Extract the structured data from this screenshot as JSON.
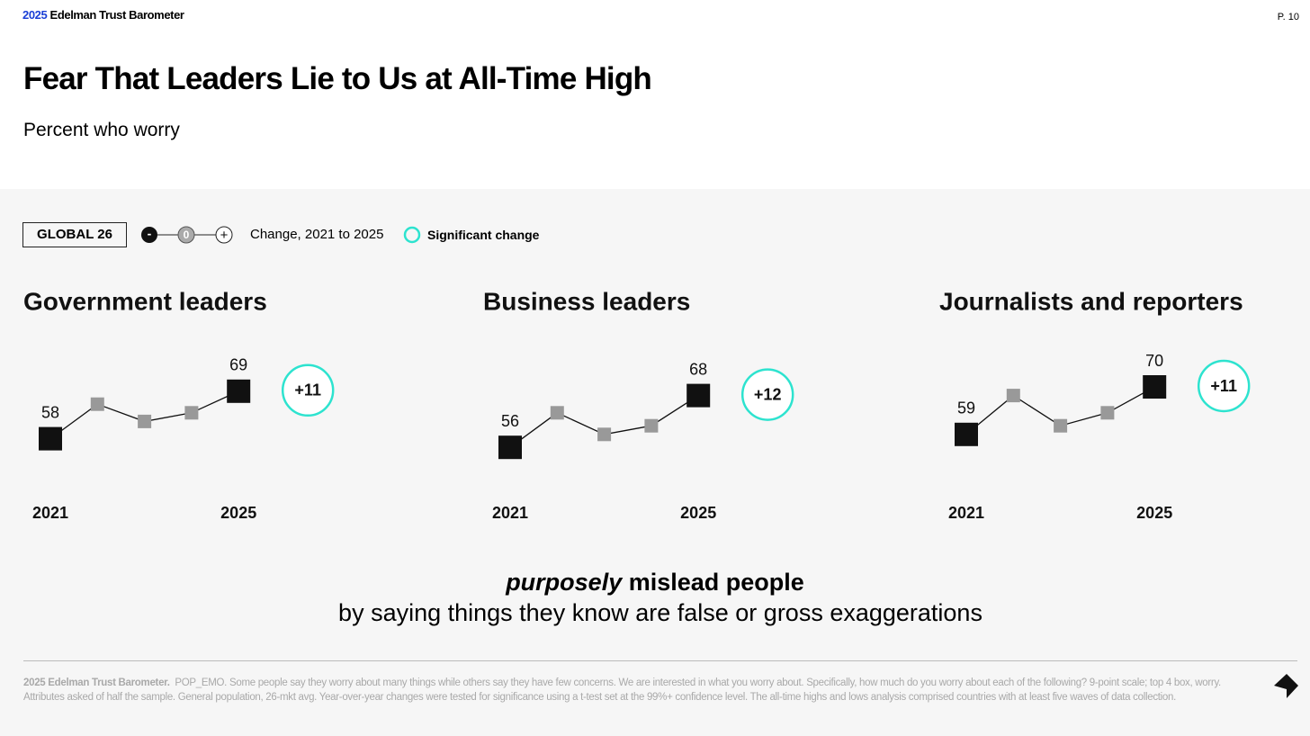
{
  "header": {
    "brand_year": "2025",
    "brand_name": "Edelman Trust Barometer",
    "page": "P. 10"
  },
  "title": "Fear That Leaders Lie to Us at All-Time High",
  "subtitle": "Percent who worry",
  "legend": {
    "market": "GLOBAL 26",
    "minus": "-",
    "zero": "0",
    "plus": "+",
    "change": "Change, 2021 to 2025",
    "significant": "Significant change"
  },
  "chart_data": [
    {
      "type": "line",
      "title": "Government leaders",
      "categories": [
        "2021",
        null,
        null,
        null,
        "2025"
      ],
      "values": [
        58,
        66,
        62,
        64,
        69
      ],
      "change": 11,
      "change_label": "+11",
      "significant": true,
      "ylim": [
        40,
        80
      ],
      "color": "#111111",
      "intermediate_color": "#999999",
      "significance_color": "#2de3cf"
    },
    {
      "type": "line",
      "title": "Business leaders",
      "categories": [
        "2021",
        null,
        null,
        null,
        "2025"
      ],
      "values": [
        56,
        64,
        59,
        61,
        68
      ],
      "change": 12,
      "change_label": "+12",
      "significant": true,
      "ylim": [
        40,
        80
      ],
      "color": "#111111",
      "intermediate_color": "#999999",
      "significance_color": "#2de3cf"
    },
    {
      "type": "line",
      "title": "Journalists and reporters",
      "categories": [
        "2021",
        null,
        null,
        null,
        "2025"
      ],
      "values": [
        59,
        68,
        61,
        64,
        70
      ],
      "change": 11,
      "change_label": "+11",
      "significant": true,
      "ylim": [
        40,
        80
      ],
      "color": "#111111",
      "intermediate_color": "#999999",
      "significance_color": "#2de3cf"
    }
  ],
  "statement": {
    "emphasis": "purposely",
    "rest": " mislead people",
    "line2": "by saying things they know are false or gross exaggerations"
  },
  "footnote": {
    "source": "2025 Edelman Trust Barometer.",
    "text": "POP_EMO. Some people say they worry about many things while others say they have few concerns. We are interested in what you worry about. Specifically, how much do you worry about each of the following? 9-point scale; top 4 box, worry. Attributes asked of half the sample. General population, 26-mkt avg. Year-over-year changes were tested for significance using a t-test set at the 99%+ confidence level. The all-time highs and lows analysis comprised countries with at least five waves of data collection."
  }
}
